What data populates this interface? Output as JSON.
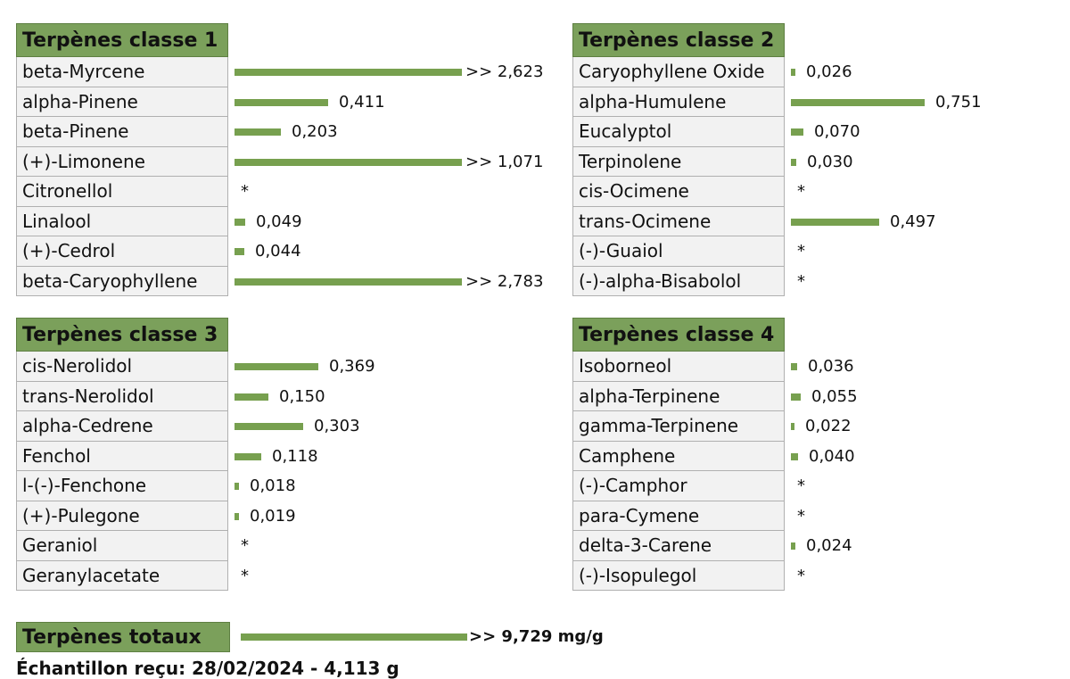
{
  "chart_data": {
    "type": "bar",
    "orientation": "horizontal",
    "unit": "mg/g",
    "panels": [
      {
        "title": "Terpènes classe 1",
        "items": [
          {
            "name": "beta-Myrcene",
            "value": 2.623,
            "label": ">> 2,623"
          },
          {
            "name": "alpha-Pinene",
            "value": 0.411,
            "label": "0,411"
          },
          {
            "name": "beta-Pinene",
            "value": 0.203,
            "label": "0,203"
          },
          {
            "name": "(+)-Limonene",
            "value": 1.071,
            "label": ">> 1,071"
          },
          {
            "name": "Citronellol",
            "value": null,
            "label": "*"
          },
          {
            "name": "Linalool",
            "value": 0.049,
            "label": "0,049"
          },
          {
            "name": "(+)-Cedrol",
            "value": 0.044,
            "label": "0,044"
          },
          {
            "name": "beta-Caryophyllene",
            "value": 2.783,
            "label": ">> 2,783"
          }
        ]
      },
      {
        "title": "Terpènes classe 2",
        "items": [
          {
            "name": "Caryophyllene Oxide",
            "value": 0.026,
            "label": "0,026"
          },
          {
            "name": "alpha-Humulene",
            "value": 0.751,
            "label": "0,751"
          },
          {
            "name": "Eucalyptol",
            "value": 0.07,
            "label": "0,070"
          },
          {
            "name": "Terpinolene",
            "value": 0.03,
            "label": "0,030"
          },
          {
            "name": "cis-Ocimene",
            "value": null,
            "label": "*"
          },
          {
            "name": "trans-Ocimene",
            "value": 0.497,
            "label": "0,497"
          },
          {
            "name": "(-)-Guaiol",
            "value": null,
            "label": "*"
          },
          {
            "name": "(-)-alpha-Bisabolol",
            "value": null,
            "label": "*"
          }
        ]
      },
      {
        "title": "Terpènes classe 3",
        "items": [
          {
            "name": "cis-Nerolidol",
            "value": 0.369,
            "label": "0,369"
          },
          {
            "name": "trans-Nerolidol",
            "value": 0.15,
            "label": "0,150"
          },
          {
            "name": "alpha-Cedrene",
            "value": 0.303,
            "label": "0,303"
          },
          {
            "name": "Fenchol",
            "value": 0.118,
            "label": "0,118"
          },
          {
            "name": "l-(-)-Fenchone",
            "value": 0.018,
            "label": "0,018"
          },
          {
            "name": "(+)-Pulegone",
            "value": 0.019,
            "label": "0,019"
          },
          {
            "name": "Geraniol",
            "value": null,
            "label": "*"
          },
          {
            "name": "Geranylacetate",
            "value": null,
            "label": "*"
          }
        ]
      },
      {
        "title": "Terpènes classe 4",
        "items": [
          {
            "name": "Isoborneol",
            "value": 0.036,
            "label": "0,036"
          },
          {
            "name": "alpha-Terpinene",
            "value": 0.055,
            "label": "0,055"
          },
          {
            "name": "gamma-Terpinene",
            "value": 0.022,
            "label": "0,022"
          },
          {
            "name": "Camphene",
            "value": 0.04,
            "label": "0,040"
          },
          {
            "name": "(-)-Camphor",
            "value": null,
            "label": "*"
          },
          {
            "name": "para-Cymene",
            "value": null,
            "label": "*"
          },
          {
            "name": "delta-3-Carene",
            "value": 0.024,
            "label": "0,024"
          },
          {
            "name": "(-)-Isopulegol",
            "value": null,
            "label": "*"
          }
        ]
      }
    ],
    "total": {
      "title": "Terpènes totaux",
      "value": 9.729,
      "label": ">> 9,729 mg/g"
    },
    "sample": "Échantillon reçu: 28/02/2024 - 4,113 g"
  },
  "colors": {
    "header_bg": "#7ba05b",
    "bar": "#77a04f",
    "label_bg": "#f2f2f2"
  }
}
